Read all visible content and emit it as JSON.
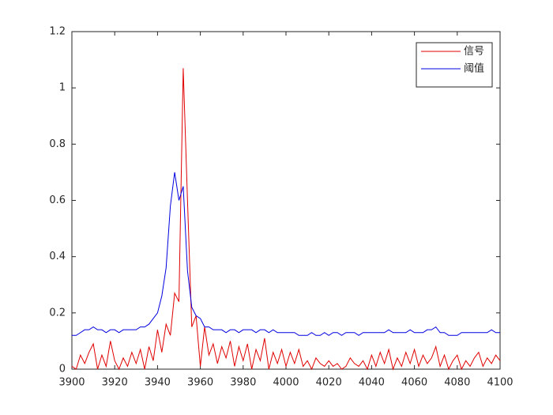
{
  "chart_data": {
    "type": "line",
    "x": [
      3900,
      3902,
      3904,
      3906,
      3908,
      3910,
      3912,
      3914,
      3916,
      3918,
      3920,
      3922,
      3924,
      3926,
      3928,
      3930,
      3932,
      3934,
      3936,
      3938,
      3940,
      3942,
      3944,
      3946,
      3948,
      3950,
      3952,
      3954,
      3956,
      3958,
      3960,
      3962,
      3964,
      3966,
      3968,
      3970,
      3972,
      3974,
      3976,
      3978,
      3980,
      3982,
      3984,
      3986,
      3988,
      3990,
      3992,
      3994,
      3996,
      3998,
      4000,
      4002,
      4004,
      4006,
      4008,
      4010,
      4012,
      4014,
      4016,
      4018,
      4020,
      4022,
      4024,
      4026,
      4028,
      4030,
      4032,
      4034,
      4036,
      4038,
      4040,
      4042,
      4044,
      4046,
      4048,
      4050,
      4052,
      4054,
      4056,
      4058,
      4060,
      4062,
      4064,
      4066,
      4068,
      4070,
      4072,
      4074,
      4076,
      4078,
      4080,
      4082,
      4084,
      4086,
      4088,
      4090,
      4092,
      4094,
      4096,
      4098,
      4100
    ],
    "series": [
      {
        "name": "信号",
        "color": "#e00000",
        "values": [
          0.01,
          0,
          0.05,
          0.02,
          0.06,
          0.09,
          0,
          0.05,
          0.01,
          0.1,
          0.03,
          0,
          0.04,
          0.01,
          0.06,
          0.02,
          0.07,
          0,
          0.08,
          0.03,
          0.14,
          0.06,
          0.16,
          0.12,
          0.27,
          0.24,
          1.07,
          0.6,
          0.15,
          0.19,
          0.01,
          0.15,
          0.05,
          0.09,
          0.02,
          0.08,
          0.04,
          0.1,
          0.01,
          0.08,
          0.03,
          0.09,
          0,
          0.07,
          0.03,
          0.11,
          0,
          0.06,
          0.02,
          0.07,
          0.01,
          0.06,
          0.02,
          0.07,
          0.01,
          0.03,
          0,
          0.04,
          0.02,
          0.01,
          0.03,
          0.01,
          0.02,
          0,
          0.01,
          0.04,
          0.02,
          0.01,
          0.03,
          0,
          0.05,
          0.01,
          0.06,
          0.02,
          0.07,
          0,
          0.04,
          0.01,
          0.06,
          0.02,
          0.07,
          0.01,
          0.05,
          0.02,
          0.04,
          0.08,
          0.01,
          0.05,
          0,
          0.03,
          0.05,
          0,
          0.03,
          0.01,
          0.04,
          0.06,
          0.01,
          0.04,
          0.02,
          0.05,
          0.03
        ]
      },
      {
        "name": "阈值",
        "color": "#0000e0",
        "values": [
          0.12,
          0.12,
          0.13,
          0.14,
          0.14,
          0.15,
          0.14,
          0.14,
          0.13,
          0.14,
          0.14,
          0.13,
          0.14,
          0.14,
          0.14,
          0.14,
          0.15,
          0.15,
          0.16,
          0.18,
          0.2,
          0.26,
          0.36,
          0.58,
          0.7,
          0.6,
          0.65,
          0.35,
          0.22,
          0.19,
          0.18,
          0.15,
          0.15,
          0.14,
          0.14,
          0.14,
          0.13,
          0.14,
          0.14,
          0.13,
          0.14,
          0.14,
          0.14,
          0.13,
          0.14,
          0.14,
          0.13,
          0.14,
          0.13,
          0.13,
          0.13,
          0.13,
          0.13,
          0.12,
          0.12,
          0.12,
          0.13,
          0.12,
          0.12,
          0.13,
          0.12,
          0.13,
          0.13,
          0.12,
          0.13,
          0.13,
          0.13,
          0.12,
          0.13,
          0.13,
          0.13,
          0.13,
          0.13,
          0.13,
          0.14,
          0.13,
          0.13,
          0.13,
          0.13,
          0.14,
          0.13,
          0.13,
          0.13,
          0.14,
          0.14,
          0.15,
          0.13,
          0.13,
          0.12,
          0.12,
          0.12,
          0.13,
          0.13,
          0.13,
          0.13,
          0.13,
          0.13,
          0.13,
          0.14,
          0.13,
          0.13
        ]
      }
    ],
    "xlim": [
      3900,
      4100
    ],
    "xticks": [
      3900,
      3920,
      3940,
      3960,
      3980,
      4000,
      4020,
      4040,
      4060,
      4080,
      4100
    ],
    "ylim": [
      0,
      1.2
    ],
    "yticks": [
      0,
      0.2,
      0.4,
      0.6,
      0.8,
      1,
      1.2
    ],
    "legend": "upper-right"
  }
}
